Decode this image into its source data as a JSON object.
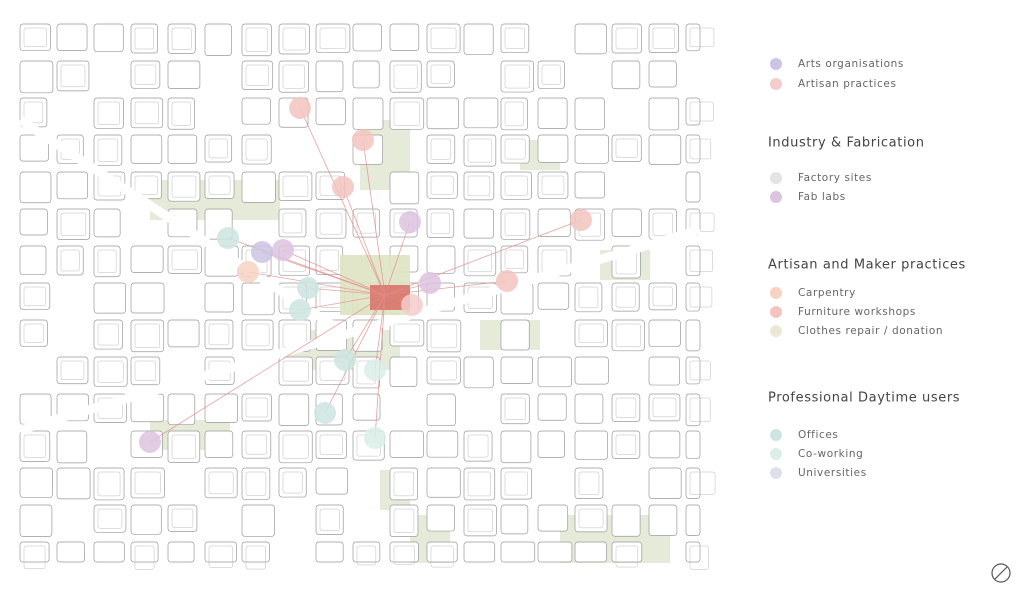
{
  "legend": {
    "groups": [
      {
        "items": [
          {
            "label": "Arts organisations",
            "color": "#cbc4e4"
          },
          {
            "label": "Artisan practices",
            "color": "#f5cccc"
          }
        ]
      },
      {
        "title": "Industry & Fabrication",
        "items": [
          {
            "label": "Factory sites",
            "color": "#e3e3e3"
          },
          {
            "label": "Fab labs",
            "color": "#dcc3df"
          }
        ]
      },
      {
        "title": "Artisan and Maker practices",
        "items": [
          {
            "label": "Carpentry",
            "color": "#f6d3c2"
          },
          {
            "label": "Furniture workshops",
            "color": "#f3c4be"
          },
          {
            "label": "Clothes repair / donation",
            "color": "#ece7d6"
          }
        ]
      },
      {
        "title": "Professional Daytime users",
        "items": [
          {
            "label": "Offices",
            "color": "#cde5e0"
          },
          {
            "label": "Co-working",
            "color": "#dbeee9"
          },
          {
            "label": "Universities",
            "color": "#dfdfea"
          }
        ]
      }
    ]
  }
}
